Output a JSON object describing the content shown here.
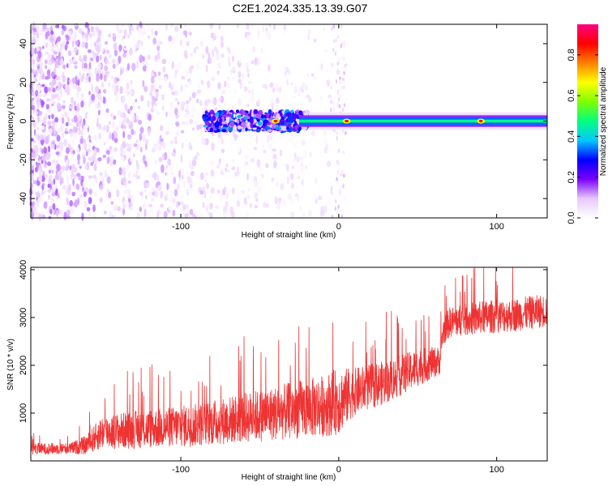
{
  "title": "C2E1.2024.335.13.39.G07",
  "chart_data": [
    {
      "type": "heatmap",
      "xlabel": "Height of straight line (km)",
      "ylabel": "Frequency (Hz)",
      "xlim": [
        -195,
        132
      ],
      "ylim": [
        -50,
        50
      ],
      "xticks": [
        -100,
        0,
        100
      ],
      "yticks": [
        -40,
        -20,
        0,
        20,
        40
      ],
      "colorbar": {
        "label": "Normalized spectral amplitude",
        "range": [
          0,
          0.95
        ],
        "ticks": [
          0,
          0.2,
          0.4,
          0.6,
          0.8
        ],
        "colormap": [
          "#ffffff",
          "#e8c8ff",
          "#7a00ff",
          "#0000ff",
          "#00c8ff",
          "#00ff80",
          "#80ff00",
          "#ffff00",
          "#ff8000",
          "#ff0000",
          "#ff0080"
        ]
      },
      "features": [
        {
          "name": "background noise",
          "x_range": [
            -195,
            -20
          ],
          "freq_range": [
            -50,
            50
          ],
          "amplitude": 0.1
        },
        {
          "name": "carrier line",
          "x_range": [
            -85,
            132
          ],
          "center_freq": 0,
          "half_width": 3,
          "amplitude": 0.35
        },
        {
          "name": "bright spots",
          "x": [
            -40,
            5,
            90
          ],
          "freq": [
            0,
            0,
            0
          ],
          "amplitude": 0.9
        }
      ]
    },
    {
      "type": "line",
      "xlabel": "Height of straight line (km)",
      "ylabel": "SNR (10 * v/v)",
      "xlim": [
        -195,
        132
      ],
      "ylim": [
        0,
        4050
      ],
      "xticks": [
        -100,
        0,
        100
      ],
      "yticks": [
        1000,
        2000,
        3000,
        4000
      ],
      "line_color": "#ee3333",
      "series": [
        {
          "x": [
            -195,
            -170,
            -160,
            -150,
            -130,
            -110,
            -90,
            -70,
            -50,
            -30,
            -10,
            0,
            10,
            30,
            50,
            64,
            66,
            70,
            90,
            110,
            132
          ],
          "y_mean": [
            250,
            260,
            330,
            600,
            650,
            700,
            750,
            850,
            950,
            1050,
            1150,
            1250,
            1450,
            1650,
            1950,
            2100,
            2700,
            2900,
            3000,
            3050,
            3150
          ],
          "y_spread": [
            120,
            120,
            200,
            350,
            400,
            420,
            450,
            500,
            550,
            600,
            650,
            700,
            500,
            450,
            400,
            300,
            300,
            320,
            350,
            350,
            350
          ]
        }
      ]
    }
  ]
}
